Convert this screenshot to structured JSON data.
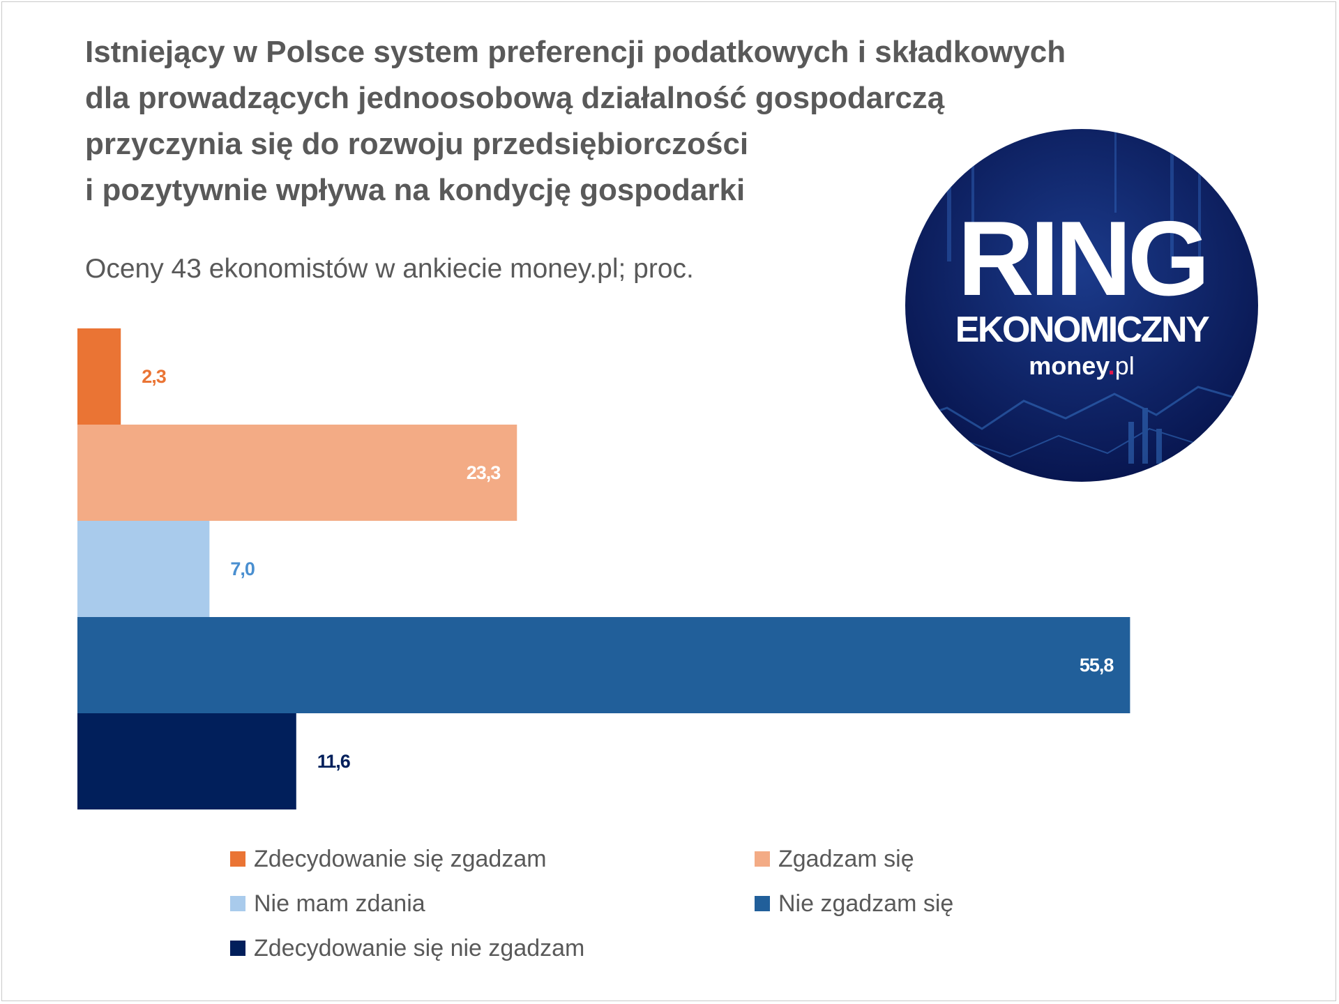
{
  "title_lines": [
    "Istniejący w Polsce system preferencji podatkowych i składkowych",
    "dla prowadzących jednoosobową działalność gospodarczą",
    "przyczynia się do rozwoju przedsiębiorczości",
    "i pozytywnie wpływa na kondycję gospodarki"
  ],
  "subtitle": "Oceny 43 ekonomistów w ankiecie money.pl; proc.",
  "logo": {
    "line1": "RING",
    "line2": "EKONOMICZNY",
    "brand_prefix": "money",
    "brand_dot": ".",
    "brand_suffix": "pl",
    "bg_color": "#0a1a55",
    "dot_color": "#e3174a"
  },
  "chart_data": {
    "type": "bar",
    "orientation": "horizontal",
    "xlim": [
      0,
      60
    ],
    "grid": false,
    "legend_position": "bottom",
    "series": [
      {
        "name": "Zdecydowanie się zgadzam",
        "value": 2.3,
        "label": "2,3",
        "color": "#ea7434",
        "label_color": "#ea7434",
        "label_inside": false
      },
      {
        "name": "Zgadzam się",
        "value": 23.3,
        "label": "23,3",
        "color": "#f3ab85",
        "label_color": "#ffffff",
        "label_inside": true
      },
      {
        "name": "Nie mam zdania",
        "value": 7.0,
        "label": "7,0",
        "color": "#a9cbec",
        "label_color": "#4a8fd0",
        "label_inside": false
      },
      {
        "name": "Nie zgadzam się",
        "value": 55.8,
        "label": "55,8",
        "color": "#215f9a",
        "label_color": "#ffffff",
        "label_inside": true
      },
      {
        "name": "Zdecydowanie się nie zgadzam",
        "value": 11.6,
        "label": "11,6",
        "color": "#011f5b",
        "label_color": "#011f5b",
        "label_inside": false
      }
    ]
  }
}
